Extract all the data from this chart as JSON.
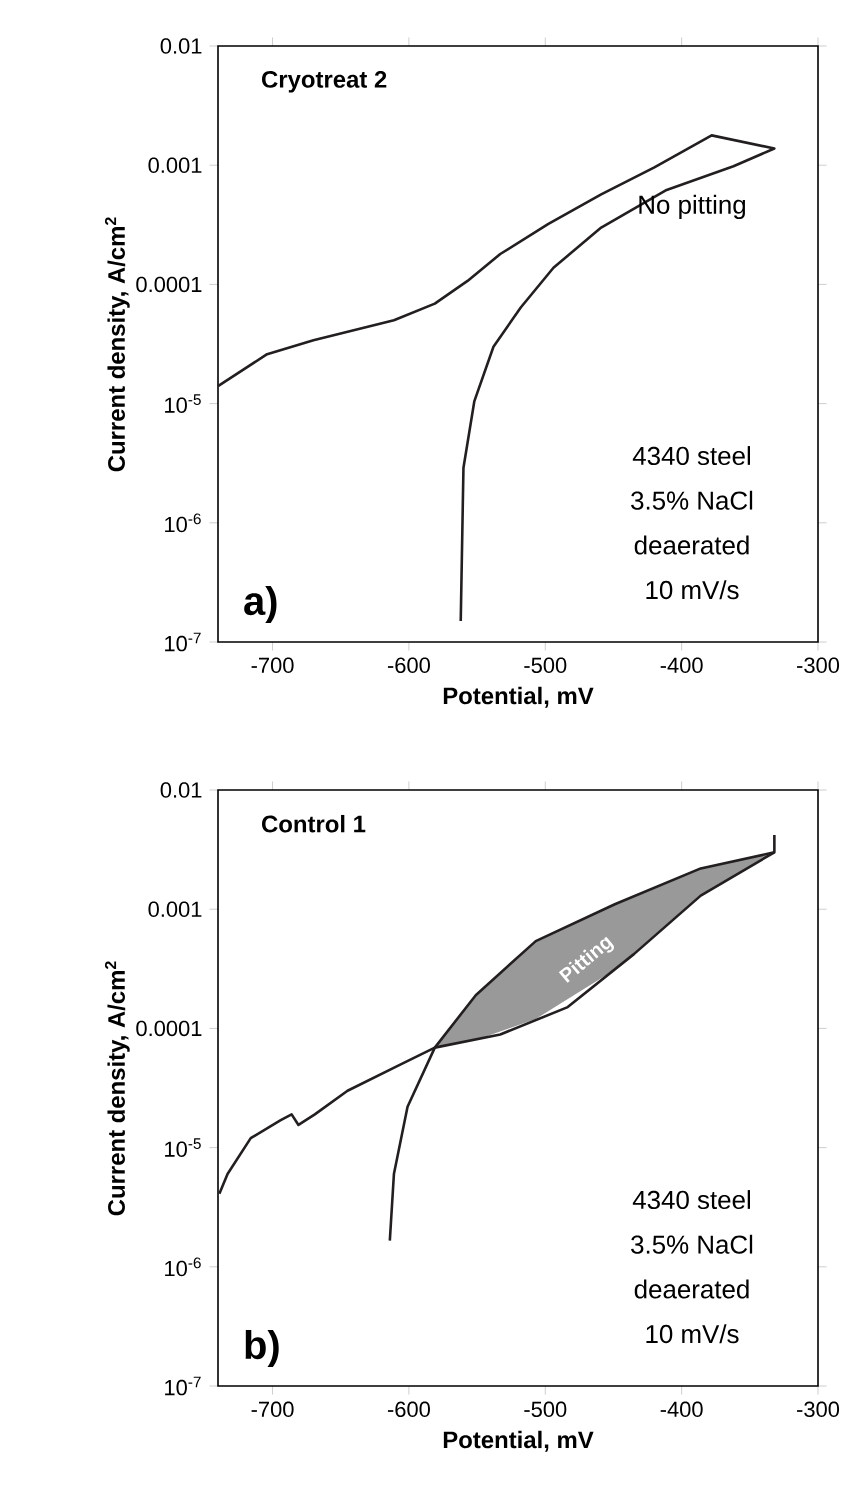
{
  "chart_data": [
    {
      "type": "line",
      "title": "Cryotreat 2",
      "xlabel": "Potential, mV",
      "ylabel": "Current density, A/cm$^{2}$",
      "log": "y",
      "xlim": [
        -740,
        -300
      ],
      "ylim": [
        1e-07,
        0.01
      ],
      "xticks": [
        -700,
        -600,
        -500,
        -400,
        -300
      ],
      "yticks": [
        {
          "value": 1e-07,
          "label": "10$^{-7}$"
        },
        {
          "value": 1e-06,
          "label": "10$^{-6}$"
        },
        {
          "value": 1e-05,
          "label": "10$^{-5}$"
        },
        0.0001,
        0.001,
        0.01
      ],
      "annotations": [
        "No pitting",
        "4340 steel",
        "3.5% NaCl",
        "deaerated",
        "10 mV/s",
        "a)"
      ],
      "series": [
        {
          "color": "#231f20",
          "x": [
            -740,
            -704,
            -670,
            -611,
            -581,
            -557,
            -533,
            -498,
            -459,
            -420,
            -378,
            -332,
            -362,
            -411,
            -459,
            -494,
            -518,
            -538,
            -552,
            -560,
            -562
          ],
          "values": [
            1.4e-05,
            2.6e-05,
            3.4e-05,
            5e-05,
            6.9e-05,
            0.000107,
            0.00018,
            0.00032,
            0.00057,
            0.00096,
            0.00178,
            0.00138,
            0.00098,
            0.00062,
            0.0003,
            0.000138,
            6.4e-05,
            3e-05,
            1.05e-05,
            2.9e-06,
            1.5e-07
          ]
        }
      ]
    },
    {
      "type": "line",
      "title": "Control 1",
      "xlabel": "Potential, mV",
      "ylabel": "Current density, A/cm$^{2}$",
      "log": "y",
      "xlim": [
        -740,
        -300
      ],
      "ylim": [
        1e-07,
        0.01
      ],
      "xticks": [
        -700,
        -600,
        -500,
        -400,
        -300
      ],
      "yticks": [
        {
          "value": 1e-07,
          "label": "10$^{-7}$"
        },
        {
          "value": 1e-06,
          "label": "10$^{-6}$"
        },
        {
          "value": 1e-05,
          "label": "10$^{-5}$"
        },
        0.0001,
        0.001,
        0.01
      ],
      "annotations": [
        "Pitting",
        "4340 steel",
        "3.5% NaCl",
        "deaerated",
        "10 mV/s",
        "b)"
      ],
      "series": [
        {
          "color": "#231f20",
          "x": [
            -739,
            -733,
            -716,
            -694,
            -686,
            -681,
            -669,
            -645,
            -606,
            -581,
            -533,
            -484,
            -435,
            -386,
            -332,
            -332
          ],
          "values": [
            4.1e-06,
            6e-06,
            1.2e-05,
            1.7e-05,
            1.9e-05,
            1.55e-05,
            1.9e-05,
            3e-05,
            5e-05,
            6.9e-05,
            8.9e-05,
            0.00015,
            0.00042,
            0.0013,
            0.003,
            0.0042
          ]
        },
        {
          "color": "#231f20",
          "x": [
            -332,
            -386,
            -449,
            -507,
            -551,
            -581,
            -601,
            -611,
            -614
          ],
          "values": [
            0.003,
            0.0022,
            0.0011,
            0.00054,
            0.00019,
            6.9e-05,
            2.2e-05,
            6e-06,
            1.66e-06
          ],
          "lower": [
            0.003,
            0.0013,
            0.00031,
            0.00012,
            8e-05,
            6.9e-05,
            null,
            null,
            null
          ],
          "upper": [
            0.003,
            0.0022,
            0.0011,
            0.00054,
            0.00019,
            6.9e-05,
            null,
            null,
            null
          ]
        }
      ]
    }
  ]
}
